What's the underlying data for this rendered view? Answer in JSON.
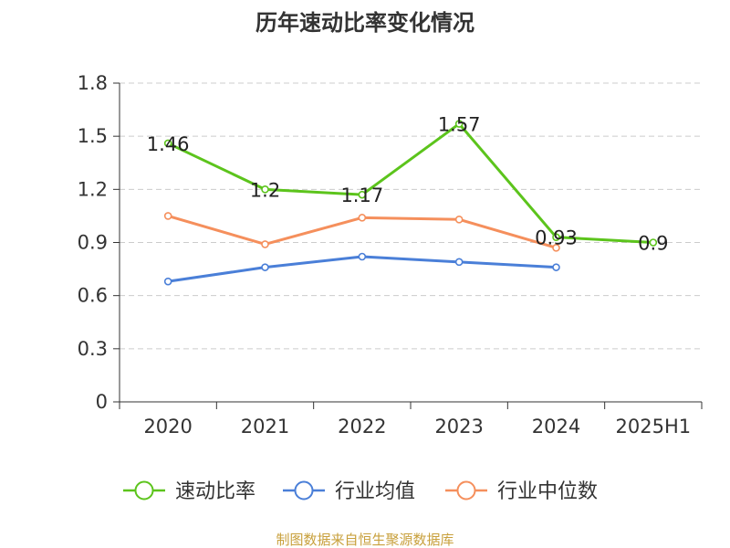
{
  "chart_data": {
    "type": "line",
    "title": "历年速动比率变化情况",
    "categories": [
      "2020",
      "2021",
      "2022",
      "2023",
      "2024",
      "2025H1"
    ],
    "ylim": [
      0,
      1.8
    ],
    "yticks": [
      "0",
      "0.3",
      "0.6",
      "0.9",
      "1.2",
      "1.5",
      "1.8"
    ],
    "grid": true,
    "legend_position": "bottom",
    "series": [
      {
        "name": "速动比率",
        "color": "#5cc41c",
        "values": [
          1.46,
          1.2,
          1.17,
          1.57,
          0.93,
          0.9
        ],
        "labels": [
          "1.46",
          "1.2",
          "1.17",
          "1.57",
          "0.93",
          "0.9"
        ]
      },
      {
        "name": "行业均值",
        "color": "#4a7fd8",
        "values": [
          0.68,
          0.76,
          0.82,
          0.79,
          0.76,
          null
        ]
      },
      {
        "name": "行业中位数",
        "color": "#f58f5c",
        "values": [
          1.05,
          0.89,
          1.04,
          1.03,
          0.87,
          null
        ]
      }
    ]
  },
  "source": "制图数据来自恒生聚源数据库"
}
